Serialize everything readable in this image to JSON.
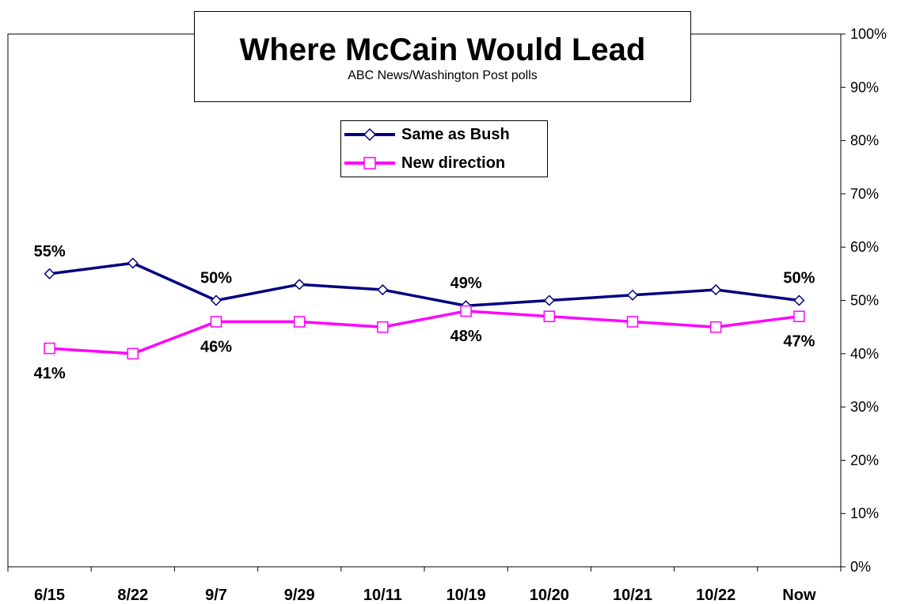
{
  "chart_data": {
    "type": "line",
    "title": "Where McCain Would Lead",
    "subtitle": "ABC News/Washington Post polls",
    "categories": [
      "6/15",
      "8/22",
      "9/7",
      "9/29",
      "10/11",
      "10/19",
      "10/20",
      "10/21",
      "10/22",
      "Now"
    ],
    "series": [
      {
        "name": "Same as Bush",
        "color": "#000080",
        "marker": "diamond",
        "values": [
          55,
          57,
          50,
          53,
          52,
          49,
          50,
          51,
          52,
          50
        ]
      },
      {
        "name": "New direction",
        "color": "#FF00FF",
        "marker": "square",
        "values": [
          41,
          40,
          46,
          46,
          45,
          48,
          47,
          46,
          45,
          47
        ]
      }
    ],
    "data_labels": [
      {
        "series": 0,
        "index": 0,
        "text": "55%"
      },
      {
        "series": 0,
        "index": 2,
        "text": "50%"
      },
      {
        "series": 0,
        "index": 5,
        "text": "49%"
      },
      {
        "series": 0,
        "index": 9,
        "text": "50%"
      },
      {
        "series": 1,
        "index": 0,
        "text": "41%"
      },
      {
        "series": 1,
        "index": 2,
        "text": "46%"
      },
      {
        "series": 1,
        "index": 5,
        "text": "48%"
      },
      {
        "series": 1,
        "index": 9,
        "text": "47%"
      }
    ],
    "y_axis": {
      "position": "right",
      "ylim": [
        0,
        100
      ],
      "ticks": [
        0,
        10,
        20,
        30,
        40,
        50,
        60,
        70,
        80,
        90,
        100
      ],
      "tick_labels": [
        "0%",
        "10%",
        "20%",
        "30%",
        "40%",
        "50%",
        "60%",
        "70%",
        "80%",
        "90%",
        "100%"
      ]
    },
    "grid": false,
    "legend_placement": "top-center"
  }
}
